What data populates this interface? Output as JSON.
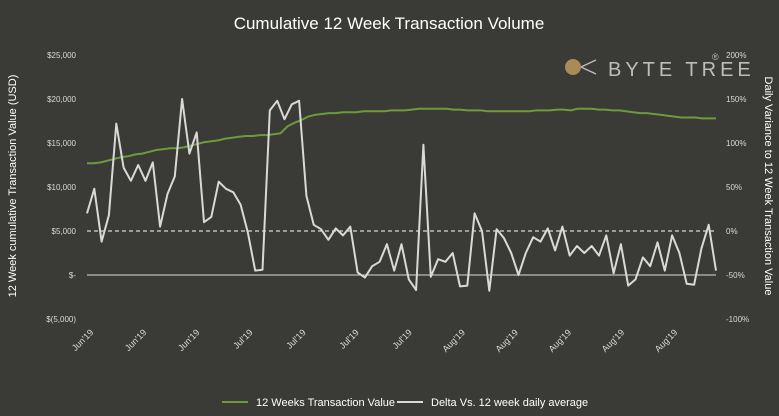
{
  "chart_data": {
    "type": "line",
    "title": "Cumulative 12 Week Transaction Volume",
    "ylabel_left": "12 Week cumulative Transaction Value (USD)",
    "ylabel_right": "Daily Variance to 12 Week Transaction Value",
    "ylim_left": [
      -5000,
      25000
    ],
    "ylim_right": [
      -100,
      200
    ],
    "y_ticks_left": [
      "$(5,000)",
      "$-",
      "$5,000",
      "$10,000",
      "$15,000",
      "$20,000",
      "$25,000"
    ],
    "y_ticks_right": [
      "-100%",
      "-50%",
      "0%",
      "50%",
      "100%",
      "150%",
      "200%"
    ],
    "x_tick_labels": [
      "Jun'19",
      "Jun'19",
      "Jun'19",
      "Jul'19",
      "Jul'19",
      "Jul'19",
      "Jul'19",
      "Aug'19",
      "Aug'19",
      "Aug'19",
      "Aug'19",
      "Aug'19"
    ],
    "reference_line": {
      "value": 5000,
      "style": "dashed"
    },
    "colors": {
      "background": "#3a3a36",
      "cumulative": "#6e9a3e",
      "delta": "#d9d9d9",
      "text": "#ffffff",
      "tick": "#d9d9d9"
    },
    "series": [
      {
        "name": "12 Weeks Transaction Value",
        "axis": "left",
        "values": [
          12700,
          12700,
          12800,
          13000,
          13200,
          13400,
          13500,
          13700,
          13800,
          14000,
          14200,
          14300,
          14400,
          14400,
          14500,
          14700,
          14900,
          15100,
          15200,
          15300,
          15500,
          15600,
          15700,
          15800,
          15800,
          15900,
          15900,
          16000,
          16100,
          16900,
          17300,
          17600,
          18000,
          18200,
          18300,
          18400,
          18400,
          18500,
          18500,
          18500,
          18600,
          18600,
          18600,
          18600,
          18700,
          18700,
          18700,
          18800,
          18900,
          18900,
          18900,
          18900,
          18900,
          18800,
          18800,
          18700,
          18700,
          18700,
          18600,
          18600,
          18600,
          18600,
          18600,
          18600,
          18600,
          18700,
          18700,
          18700,
          18800,
          18800,
          18700,
          18900,
          18900,
          18900,
          18800,
          18800,
          18700,
          18700,
          18600,
          18500,
          18400,
          18400,
          18300,
          18200,
          18100,
          18000,
          17900,
          17900,
          17900,
          17800,
          17800,
          17800
        ]
      },
      {
        "name": "Delta Vs. 12 week daily average",
        "axis": "right",
        "values": [
          20,
          48,
          -12,
          18,
          122,
          72,
          57,
          75,
          57,
          78,
          5,
          42,
          62,
          150,
          88,
          112,
          10,
          16,
          56,
          48,
          44,
          30,
          -2,
          -45,
          -44,
          137,
          148,
          127,
          144,
          148,
          40,
          7,
          2,
          -10,
          3,
          -5,
          5,
          -47,
          -53,
          -40,
          -35,
          -15,
          -45,
          -15,
          -55,
          -67,
          98,
          -52,
          -32,
          -35,
          -25,
          -63,
          -62,
          20,
          0,
          -68,
          2,
          -8,
          -25,
          -50,
          -25,
          -7,
          -12,
          3,
          -22,
          5,
          -28,
          -17,
          -25,
          -17,
          -28,
          -5,
          -48,
          -15,
          -62,
          -55,
          -30,
          -40,
          -13,
          -45,
          -5,
          -25,
          -60,
          -61,
          -20,
          7,
          -45
        ]
      }
    ]
  },
  "legend": {
    "cumulative_label": "12 Weeks Transaction Value",
    "delta_label": "Delta Vs. 12 week daily average"
  },
  "logo": {
    "text": "BYTE TREE",
    "mark": "®"
  }
}
